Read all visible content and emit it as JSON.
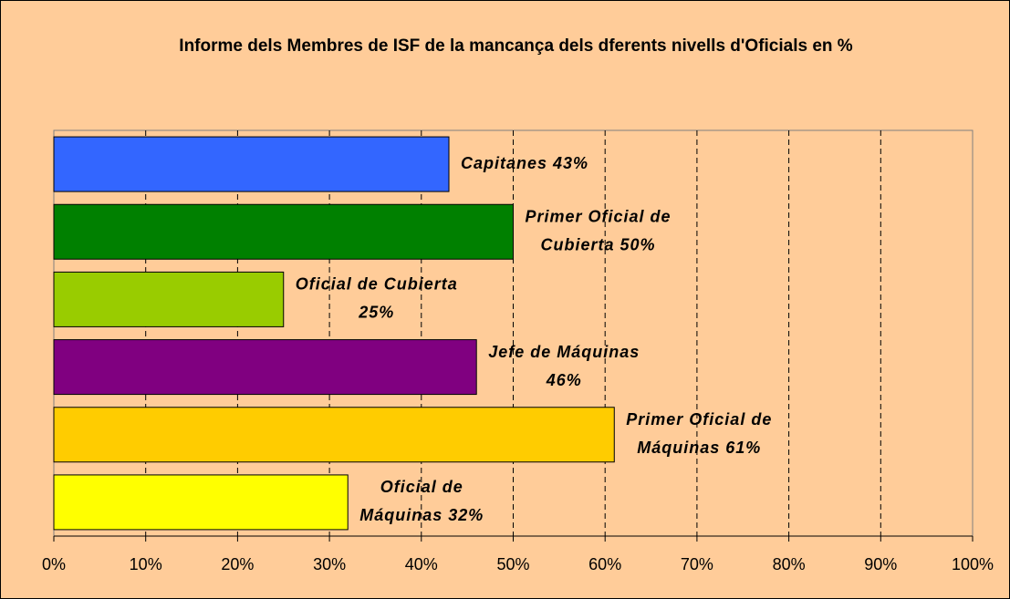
{
  "chart_data": {
    "type": "bar",
    "orientation": "horizontal",
    "title": "Informe dels Membres de ISF de la mancança dels dferents nivells d'Oficials en %",
    "values": [
      43,
      50,
      25,
      46,
      61,
      32
    ],
    "value_labels": [
      [
        "Capitanes 43%"
      ],
      [
        "Primer Oficial de",
        "Cubierta 50%"
      ],
      [
        "Oficial de Cubierta",
        "25%"
      ],
      [
        "Jefe de Máquinas",
        "46%"
      ],
      [
        "Primer Oficial de",
        "Máquinas 61%"
      ],
      [
        "Oficial de",
        "Máquinas 32%"
      ]
    ],
    "colors": [
      "#3366ff",
      "#008000",
      "#99cc00",
      "#800080",
      "#ffcc00",
      "#ffff00"
    ],
    "xlim": [
      0,
      100
    ],
    "xticks": [
      {
        "value": 0,
        "label": "0%"
      },
      {
        "value": 10,
        "label": "10%"
      },
      {
        "value": 20,
        "label": "20%"
      },
      {
        "value": 30,
        "label": "30%"
      },
      {
        "value": 40,
        "label": "40%"
      },
      {
        "value": 50,
        "label": "50%"
      },
      {
        "value": 60,
        "label": "60%"
      },
      {
        "value": 70,
        "label": "70%"
      },
      {
        "value": 80,
        "label": "80%"
      },
      {
        "value": 90,
        "label": "90%"
      },
      {
        "value": 100,
        "label": "100%"
      }
    ],
    "grid": true
  }
}
